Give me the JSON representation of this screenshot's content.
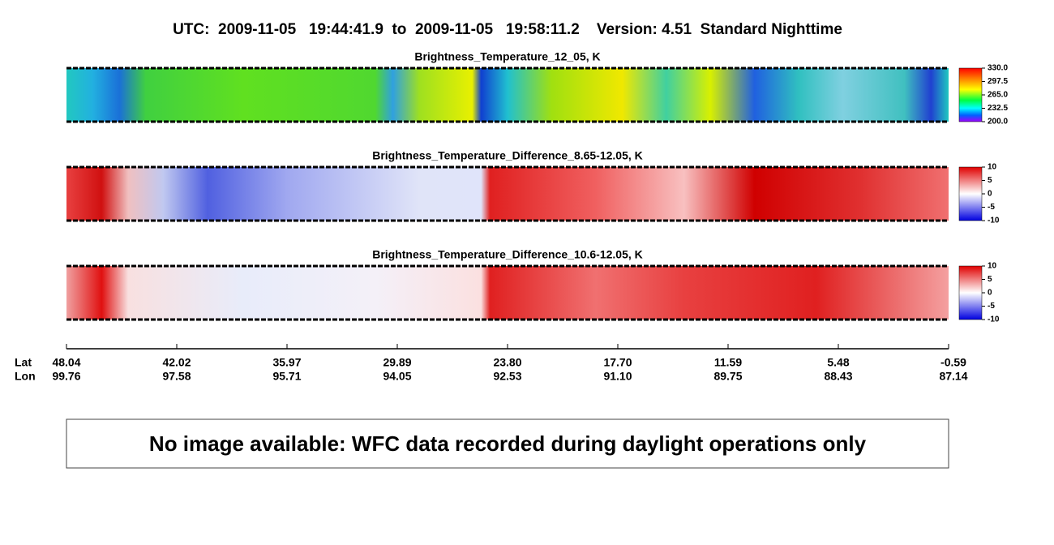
{
  "header": {
    "title": "UTC:  2009-11-05   19:44:41.9  to  2009-11-05   19:58:11.2    Version: 4.51  Standard Nighttime"
  },
  "panels": [
    {
      "title": "Brightness_Temperature_12_05, K",
      "colorbar": [
        "330.0",
        "297.5",
        "265.0",
        "232.5",
        "200.0"
      ]
    },
    {
      "title": "Brightness_Temperature_Difference_8.65-12.05, K",
      "colorbar": [
        "10",
        "5",
        "0",
        "-5",
        "-10"
      ]
    },
    {
      "title": "Brightness_Temperature_Difference_10.6-12.05, K",
      "colorbar": [
        "10",
        "5",
        "0",
        "-5",
        "-10"
      ]
    }
  ],
  "axis": {
    "lat_label": "Lat",
    "lon_label": "Lon",
    "ticks": [
      {
        "lat": "48.04",
        "lon": "99.76"
      },
      {
        "lat": "42.02",
        "lon": "97.58"
      },
      {
        "lat": "35.97",
        "lon": "95.71"
      },
      {
        "lat": "29.89",
        "lon": "94.05"
      },
      {
        "lat": "23.80",
        "lon": "92.53"
      },
      {
        "lat": "17.70",
        "lon": "91.10"
      },
      {
        "lat": "11.59",
        "lon": "89.75"
      },
      {
        "lat": "5.48",
        "lon": "88.43"
      },
      {
        "lat": "-0.59",
        "lon": "87.14"
      }
    ]
  },
  "notice": "No image available: WFC data recorded during daylight operations only"
}
